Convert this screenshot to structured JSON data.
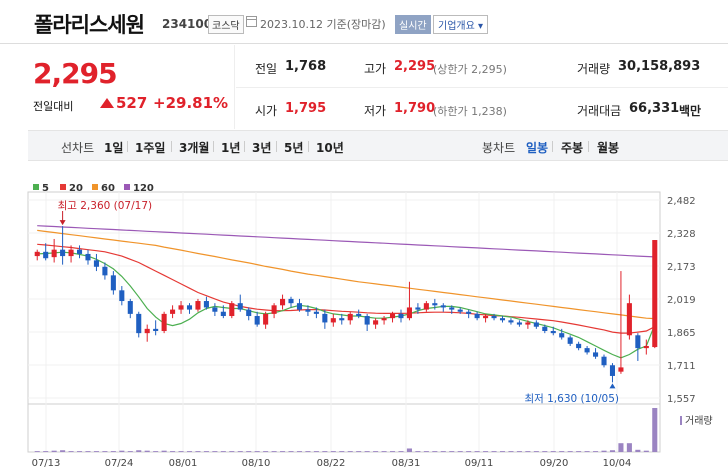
{
  "stock": {
    "name": "폴라리스세원",
    "code": "234100",
    "market": "코스닥",
    "date": "2023.10.12 기준(장마감)",
    "realtime_label": "실시간",
    "company_label": "기업개요 ▾"
  },
  "quote": {
    "price": "2,295",
    "change_label": "전일대비",
    "change": "527",
    "change_pct": "+29.81%",
    "prev_close_label": "전일",
    "prev_close": "1,768",
    "high_label": "고가",
    "high": "2,295",
    "upper_limit": "(상한가 2,295)",
    "volume_label": "거래량",
    "volume": "30,158,893",
    "open_label": "시가",
    "open": "1,795",
    "low_label": "저가",
    "low": "1,790",
    "lower_limit": "(하한가 1,238)",
    "amount_label": "거래대금",
    "amount": "66,331",
    "amount_unit": "백만"
  },
  "periods": {
    "line_label": "선차트",
    "items": [
      "1일",
      "1주일",
      "3개월",
      "1년",
      "3년",
      "5년",
      "10년"
    ],
    "candle_label": "봉차트",
    "candle_items": [
      "일봉",
      "주봉",
      "월봉"
    ],
    "active_candle": "일봉"
  },
  "colors": {
    "up": "#e0222b",
    "down": "#1f5fc1",
    "ma5": "#4caf50",
    "ma20": "#e53935",
    "ma60": "#f0942b",
    "ma120": "#9b59b6",
    "volume": "#9b84c2"
  },
  "chart_data": {
    "type": "candlestick",
    "legend": [
      {
        "name": "5",
        "color": "#4caf50"
      },
      {
        "name": "20",
        "color": "#e53935"
      },
      {
        "name": "60",
        "color": "#f0942b"
      },
      {
        "name": "120",
        "color": "#9b59b6"
      }
    ],
    "y_ticks": [
      "2,482",
      "2,328",
      "2,173",
      "2,019",
      "1,865",
      "1,711",
      "1,557"
    ],
    "ylim": [
      1557,
      2482
    ],
    "x_ticks": [
      "07/13",
      "07/24",
      "08/01",
      "08/10",
      "08/22",
      "08/31",
      "09/11",
      "09/20",
      "10/04"
    ],
    "annotations": {
      "high": "최고 2,360 (07/17)",
      "low": "최저 1,630 (10/05)"
    },
    "volume_label": "거래량",
    "candles": [
      [
        2220,
        2250,
        2200,
        2240
      ],
      [
        2240,
        2280,
        2200,
        2210
      ],
      [
        2215,
        2300,
        2190,
        2250
      ],
      [
        2250,
        2360,
        2180,
        2220
      ],
      [
        2220,
        2270,
        2190,
        2250
      ],
      [
        2250,
        2270,
        2210,
        2230
      ],
      [
        2230,
        2250,
        2180,
        2200
      ],
      [
        2200,
        2230,
        2150,
        2170
      ],
      [
        2170,
        2190,
        2110,
        2130
      ],
      [
        2130,
        2150,
        2040,
        2060
      ],
      [
        2060,
        2080,
        1990,
        2010
      ],
      [
        2010,
        2020,
        1930,
        1950
      ],
      [
        1950,
        1960,
        1840,
        1860
      ],
      [
        1860,
        1900,
        1820,
        1880
      ],
      [
        1880,
        1920,
        1850,
        1870
      ],
      [
        1870,
        1960,
        1860,
        1950
      ],
      [
        1950,
        1990,
        1930,
        1970
      ],
      [
        1970,
        2010,
        1950,
        1990
      ],
      [
        1990,
        2000,
        1950,
        1970
      ],
      [
        1970,
        2020,
        1960,
        2010
      ],
      [
        2010,
        2030,
        1970,
        1980
      ],
      [
        1980,
        2000,
        1940,
        1960
      ],
      [
        1960,
        1990,
        1930,
        1940
      ],
      [
        1940,
        2010,
        1930,
        2000
      ],
      [
        2000,
        2040,
        1960,
        1970
      ],
      [
        1970,
        1980,
        1920,
        1940
      ],
      [
        1940,
        1960,
        1890,
        1900
      ],
      [
        1900,
        1960,
        1880,
        1950
      ],
      [
        1950,
        2000,
        1930,
        1990
      ],
      [
        1990,
        2040,
        1970,
        2020
      ],
      [
        2020,
        2030,
        1980,
        2000
      ],
      [
        2000,
        2020,
        1960,
        1970
      ],
      [
        1970,
        1990,
        1940,
        1960
      ],
      [
        1960,
        1980,
        1930,
        1950
      ],
      [
        1950,
        1970,
        1880,
        1910
      ],
      [
        1910,
        1950,
        1890,
        1930
      ],
      [
        1930,
        1950,
        1900,
        1920
      ],
      [
        1920,
        1960,
        1900,
        1950
      ],
      [
        1950,
        1970,
        1930,
        1940
      ],
      [
        1940,
        1950,
        1870,
        1900
      ],
      [
        1900,
        1930,
        1880,
        1920
      ],
      [
        1920,
        1940,
        1900,
        1930
      ],
      [
        1930,
        1960,
        1910,
        1950
      ],
      [
        1950,
        1970,
        1910,
        1930
      ],
      [
        1930,
        2100,
        1920,
        1980
      ],
      [
        1980,
        2000,
        1950,
        1970
      ],
      [
        1970,
        2010,
        1960,
        2000
      ],
      [
        2000,
        2020,
        1970,
        1990
      ],
      [
        1990,
        2000,
        1960,
        1980
      ],
      [
        1980,
        1990,
        1950,
        1970
      ],
      [
        1970,
        1980,
        1950,
        1960
      ],
      [
        1960,
        1970,
        1930,
        1950
      ],
      [
        1950,
        1960,
        1920,
        1930
      ],
      [
        1930,
        1950,
        1910,
        1940
      ],
      [
        1940,
        1950,
        1920,
        1930
      ],
      [
        1930,
        1940,
        1910,
        1920
      ],
      [
        1920,
        1930,
        1900,
        1910
      ],
      [
        1910,
        1920,
        1890,
        1900
      ],
      [
        1900,
        1920,
        1880,
        1910
      ],
      [
        1910,
        1920,
        1880,
        1890
      ],
      [
        1890,
        1900,
        1860,
        1870
      ],
      [
        1870,
        1890,
        1850,
        1860
      ],
      [
        1860,
        1880,
        1830,
        1840
      ],
      [
        1840,
        1850,
        1800,
        1810
      ],
      [
        1810,
        1820,
        1780,
        1790
      ],
      [
        1790,
        1800,
        1760,
        1770
      ],
      [
        1770,
        1790,
        1740,
        1750
      ],
      [
        1750,
        1760,
        1700,
        1710
      ],
      [
        1710,
        1720,
        1630,
        1660
      ],
      [
        1680,
        2150,
        1670,
        1700
      ],
      [
        1850,
        2040,
        1830,
        2000
      ],
      [
        1850,
        1860,
        1730,
        1790
      ],
      [
        1790,
        1830,
        1760,
        1800
      ],
      [
        1795,
        2295,
        1790,
        2295
      ]
    ],
    "ma5": [
      2230,
      2232,
      2235,
      2238,
      2235,
      2228,
      2220,
      2205,
      2185,
      2160,
      2125,
      2080,
      2030,
      1975,
      1935,
      1905,
      1895,
      1905,
      1925,
      1955,
      1975,
      1985,
      1980,
      1975,
      1975,
      1965,
      1955,
      1950,
      1955,
      1965,
      1980,
      1990,
      1985,
      1975,
      1960,
      1950,
      1945,
      1940,
      1940,
      1935,
      1930,
      1930,
      1935,
      1940,
      1950,
      1965,
      1975,
      1980,
      1985,
      1985,
      1980,
      1970,
      1960,
      1950,
      1945,
      1940,
      1935,
      1925,
      1915,
      1905,
      1895,
      1885,
      1870,
      1855,
      1840,
      1820,
      1800,
      1780,
      1760,
      1745,
      1760,
      1785,
      1800,
      1900
    ],
    "ma20": [
      2275,
      2272,
      2268,
      2264,
      2260,
      2255,
      2250,
      2245,
      2240,
      2230,
      2220,
      2205,
      2190,
      2170,
      2150,
      2130,
      2110,
      2090,
      2070,
      2050,
      2035,
      2020,
      2005,
      1995,
      1985,
      1978,
      1972,
      1968,
      1965,
      1965,
      1966,
      1968,
      1970,
      1970,
      1968,
      1965,
      1962,
      1960,
      1958,
      1955,
      1953,
      1952,
      1952,
      1952,
      1953,
      1955,
      1957,
      1958,
      1958,
      1957,
      1955,
      1952,
      1948,
      1945,
      1942,
      1940,
      1937,
      1934,
      1930,
      1926,
      1922,
      1918,
      1912,
      1905,
      1898,
      1890,
      1882,
      1875,
      1865,
      1860,
      1860,
      1865,
      1870,
      1890
    ],
    "ma60": [
      2340,
      2335,
      2330,
      2325,
      2320,
      2315,
      2310,
      2305,
      2300,
      2295,
      2290,
      2285,
      2280,
      2275,
      2270,
      2262,
      2255,
      2248,
      2240,
      2232,
      2225,
      2218,
      2210,
      2202,
      2195,
      2188,
      2180,
      2172,
      2165,
      2158,
      2150,
      2143,
      2136,
      2130,
      2124,
      2118,
      2112,
      2106,
      2100,
      2095,
      2090,
      2085,
      2080,
      2075,
      2070,
      2065,
      2060,
      2055,
      2050,
      2045,
      2040,
      2035,
      2030,
      2025,
      2020,
      2015,
      2010,
      2005,
      2000,
      1995,
      1990,
      1985,
      1980,
      1975,
      1970,
      1965,
      1960,
      1955,
      1950,
      1945,
      1940,
      1935,
      1930,
      1928
    ],
    "ma120": [
      2362,
      2360,
      2358,
      2356,
      2354,
      2352,
      2350,
      2348,
      2346,
      2344,
      2342,
      2340,
      2338,
      2336,
      2334,
      2332,
      2330,
      2328,
      2326,
      2324,
      2322,
      2320,
      2318,
      2316,
      2314,
      2312,
      2310,
      2308,
      2306,
      2304,
      2302,
      2300,
      2298,
      2296,
      2294,
      2292,
      2290,
      2288,
      2286,
      2284,
      2282,
      2280,
      2278,
      2276,
      2274,
      2272,
      2270,
      2268,
      2266,
      2264,
      2262,
      2260,
      2258,
      2256,
      2254,
      2252,
      2250,
      2248,
      2246,
      2244,
      2242,
      2240,
      2238,
      2236,
      2234,
      2232,
      2230,
      2228,
      2226,
      2224,
      2222,
      2220,
      2218,
      2216
    ],
    "volume": [
      0.02,
      0.02,
      0.03,
      0.04,
      0.02,
      0.02,
      0.02,
      0.02,
      0.02,
      0.02,
      0.03,
      0.02,
      0.04,
      0.03,
      0.02,
      0.03,
      0.02,
      0.02,
      0.02,
      0.02,
      0.02,
      0.02,
      0.02,
      0.02,
      0.02,
      0.02,
      0.02,
      0.02,
      0.02,
      0.02,
      0.02,
      0.02,
      0.02,
      0.02,
      0.02,
      0.02,
      0.02,
      0.02,
      0.02,
      0.02,
      0.02,
      0.02,
      0.02,
      0.02,
      0.08,
      0.02,
      0.02,
      0.02,
      0.02,
      0.02,
      0.02,
      0.02,
      0.02,
      0.02,
      0.02,
      0.02,
      0.02,
      0.02,
      0.02,
      0.02,
      0.02,
      0.02,
      0.02,
      0.02,
      0.02,
      0.02,
      0.02,
      0.03,
      0.04,
      0.2,
      0.2,
      0.05,
      0.03,
      1.0
    ]
  }
}
